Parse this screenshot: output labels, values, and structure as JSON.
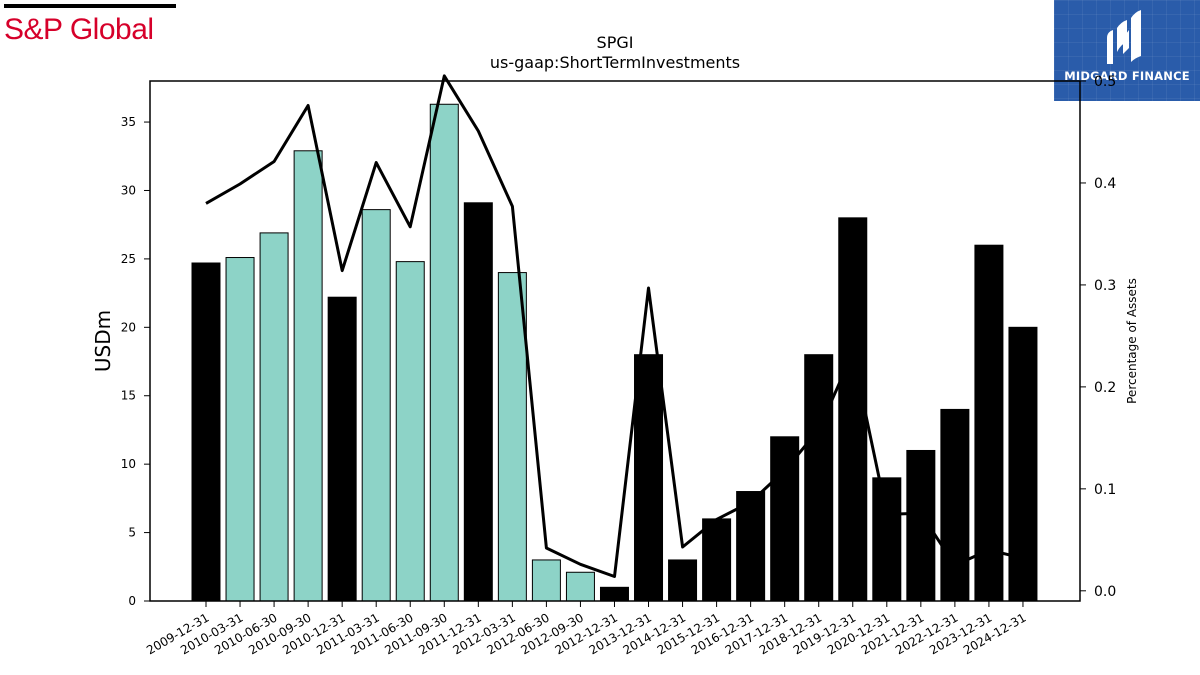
{
  "logos": {
    "left_text": "S&P Global",
    "right_text": "MIDGARD FINANCE",
    "right_color": "#2a5caa",
    "left_color": "#d6002a"
  },
  "chart_data": {
    "type": "bar",
    "title": "SPGI",
    "subtitle": "us-gaap:ShortTermInvestments",
    "ylabel": "USDm",
    "y2label": "Percentage of Assets",
    "ylim": [
      0,
      38
    ],
    "y2lim": [
      -0.01,
      0.5
    ],
    "yticks": [
      0,
      5,
      10,
      15,
      20,
      25,
      30,
      35
    ],
    "y2ticks": [
      0.0,
      0.1,
      0.2,
      0.3,
      0.4,
      0.5
    ],
    "y2tick_labels": [
      "0.0",
      "0.1",
      "0.2",
      "0.3",
      "0.4",
      "0.5"
    ],
    "grid": false,
    "colors": {
      "annual": "#000000",
      "quarterly": "#8dd3c7",
      "line": "#000000"
    },
    "categories": [
      "2009-12-31",
      "2010-03-31",
      "2010-06-30",
      "2010-09-30",
      "2010-12-31",
      "2011-03-31",
      "2011-06-30",
      "2011-09-30",
      "2011-12-31",
      "2012-03-31",
      "2012-06-30",
      "2012-09-30",
      "2012-12-31",
      "2013-12-31",
      "2014-12-31",
      "2015-12-31",
      "2016-12-31",
      "2017-12-31",
      "2018-12-31",
      "2019-12-31",
      "2020-12-31",
      "2021-12-31",
      "2022-12-31",
      "2023-12-31",
      "2024-12-31"
    ],
    "values": [
      24.7,
      25.1,
      26.9,
      32.9,
      22.2,
      28.6,
      24.8,
      36.3,
      29.1,
      24.0,
      3.0,
      2.1,
      1.0,
      18.0,
      3.0,
      6.0,
      8.0,
      12.0,
      18.0,
      28.0,
      9.0,
      11.0,
      14.0,
      26.0,
      20.0
    ],
    "period": [
      "annual",
      "quarterly",
      "quarterly",
      "quarterly",
      "annual",
      "quarterly",
      "quarterly",
      "quarterly",
      "annual",
      "quarterly",
      "quarterly",
      "quarterly",
      "annual",
      "annual",
      "annual",
      "annual",
      "annual",
      "annual",
      "annual",
      "annual",
      "annual",
      "annual",
      "annual",
      "annual",
      "annual"
    ],
    "pct_of_assets": [
      0.38,
      0.399,
      0.421,
      0.476,
      0.314,
      0.42,
      0.357,
      0.505,
      0.451,
      0.377,
      0.042,
      0.026,
      0.014,
      0.297,
      0.043,
      0.07,
      0.087,
      0.118,
      0.158,
      0.233,
      0.075,
      0.076,
      0.025,
      0.04,
      0.032
    ]
  }
}
